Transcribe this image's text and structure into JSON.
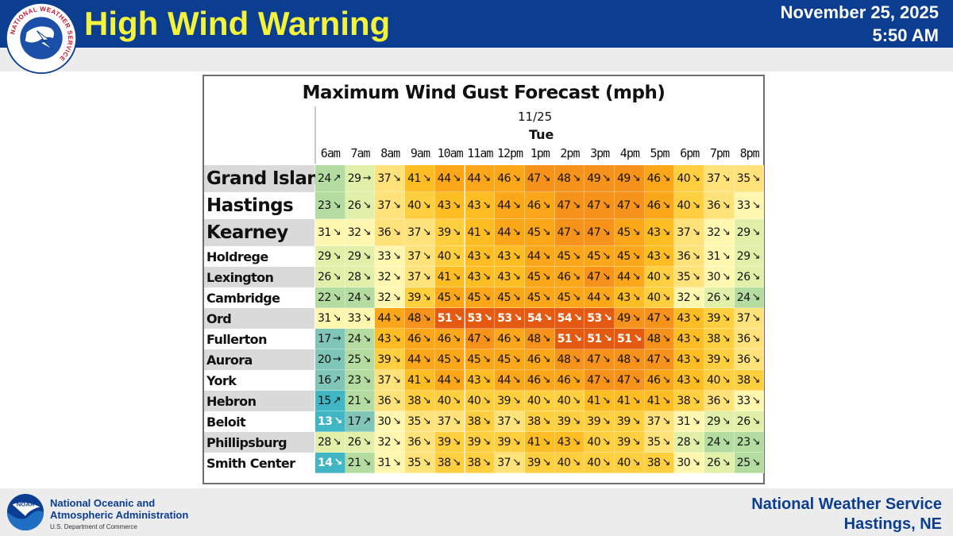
{
  "header": {
    "headline": "High Wind Warning",
    "date": "November 25, 2025",
    "time": "5:50 AM",
    "logo_icon": "nws-logo-icon",
    "logo_text": "NATIONAL WEATHER SERVICE"
  },
  "table": {
    "title": "Maximum Wind Gust Forecast (mph)",
    "date_label": "11/25",
    "day_label": "Tue",
    "hours": [
      "6am",
      "7am",
      "8am",
      "9am",
      "10am",
      "11am",
      "12pm",
      "1pm",
      "2pm",
      "3pm",
      "4pm",
      "5pm",
      "6pm",
      "7pm",
      "8pm"
    ],
    "rows": [
      {
        "city": "Grand Island",
        "size": "big",
        "gusts": [
          24,
          29,
          37,
          41,
          44,
          44,
          46,
          47,
          48,
          49,
          49,
          46,
          40,
          37,
          35
        ],
        "arrows": [
          "↗",
          "→",
          "↘",
          "↘",
          "↘",
          "↘",
          "↘",
          "↘",
          "↘",
          "↘",
          "↘",
          "↘",
          "↘",
          "↘",
          "↘"
        ]
      },
      {
        "city": "Hastings",
        "size": "big",
        "gusts": [
          23,
          26,
          37,
          40,
          43,
          43,
          44,
          46,
          47,
          47,
          47,
          46,
          40,
          36,
          33
        ],
        "arrows": [
          "↘",
          "↘",
          "↘",
          "↘",
          "↘",
          "↘",
          "↘",
          "↘",
          "↘",
          "↘",
          "↘",
          "↘",
          "↘",
          "↘",
          "↘"
        ]
      },
      {
        "city": "Kearney",
        "size": "big",
        "gusts": [
          31,
          32,
          36,
          37,
          39,
          41,
          44,
          45,
          47,
          47,
          45,
          43,
          37,
          32,
          29
        ],
        "arrows": [
          "↘",
          "↘",
          "↘",
          "↘",
          "↘",
          "↘",
          "↘",
          "↘",
          "↘",
          "↘",
          "↘",
          "↘",
          "↘",
          "↘",
          "↘"
        ]
      },
      {
        "city": "Holdrege",
        "size": "small",
        "gusts": [
          29,
          29,
          33,
          37,
          40,
          43,
          43,
          44,
          45,
          45,
          45,
          43,
          36,
          31,
          29
        ],
        "arrows": [
          "↘",
          "↘",
          "↘",
          "↘",
          "↘",
          "↘",
          "↘",
          "↘",
          "↘",
          "↘",
          "↘",
          "↘",
          "↘",
          "↘",
          "↘"
        ]
      },
      {
        "city": "Lexington",
        "size": "small",
        "gusts": [
          26,
          28,
          32,
          37,
          41,
          43,
          43,
          45,
          46,
          47,
          44,
          40,
          35,
          30,
          26
        ],
        "arrows": [
          "↘",
          "↘",
          "↘",
          "↘",
          "↘",
          "↘",
          "↘",
          "↘",
          "↘",
          "↘",
          "↘",
          "↘",
          "↘",
          "↘",
          "↘"
        ]
      },
      {
        "city": "Cambridge",
        "size": "small",
        "gusts": [
          22,
          24,
          32,
          39,
          45,
          45,
          45,
          45,
          45,
          44,
          43,
          40,
          32,
          26,
          24
        ],
        "arrows": [
          "↘",
          "↘",
          "↘",
          "↘",
          "↘",
          "↘",
          "↘",
          "↘",
          "↘",
          "↘",
          "↘",
          "↘",
          "↘",
          "↘",
          "↘"
        ]
      },
      {
        "city": "Ord",
        "size": "small",
        "gusts": [
          31,
          33,
          44,
          48,
          51,
          53,
          53,
          54,
          54,
          53,
          49,
          47,
          43,
          39,
          37
        ],
        "arrows": [
          "↘",
          "↘",
          "↘",
          "↘",
          "↘",
          "↘",
          "↘",
          "↘",
          "↘",
          "↘",
          "↘",
          "↘",
          "↘",
          "↘",
          "↘"
        ]
      },
      {
        "city": "Fullerton",
        "size": "small",
        "gusts": [
          17,
          24,
          43,
          46,
          46,
          47,
          46,
          48,
          51,
          51,
          51,
          48,
          43,
          38,
          36
        ],
        "arrows": [
          "→",
          "↘",
          "↘",
          "↘",
          "↘",
          "↘",
          "↘",
          "↘",
          "↘",
          "↘",
          "↘",
          "↘",
          "↘",
          "↘",
          "↘"
        ]
      },
      {
        "city": "Aurora",
        "size": "small",
        "gusts": [
          20,
          25,
          39,
          44,
          45,
          45,
          45,
          46,
          48,
          47,
          48,
          47,
          43,
          39,
          36
        ],
        "arrows": [
          "→",
          "↘",
          "↘",
          "↘",
          "↘",
          "↘",
          "↘",
          "↘",
          "↘",
          "↘",
          "↘",
          "↘",
          "↘",
          "↘",
          "↘"
        ]
      },
      {
        "city": "York",
        "size": "small",
        "gusts": [
          16,
          23,
          37,
          41,
          44,
          43,
          44,
          46,
          46,
          47,
          47,
          46,
          43,
          40,
          38
        ],
        "arrows": [
          "↗",
          "↘",
          "↘",
          "↘",
          "↘",
          "↘",
          "↘",
          "↘",
          "↘",
          "↘",
          "↘",
          "↘",
          "↘",
          "↘",
          "↘"
        ]
      },
      {
        "city": "Hebron",
        "size": "small",
        "gusts": [
          15,
          21,
          36,
          38,
          40,
          40,
          39,
          40,
          40,
          41,
          41,
          41,
          38,
          36,
          33
        ],
        "arrows": [
          "↗",
          "↘",
          "↘",
          "↘",
          "↘",
          "↘",
          "↘",
          "↘",
          "↘",
          "↘",
          "↘",
          "↘",
          "↘",
          "↘",
          "↘"
        ]
      },
      {
        "city": "Beloit",
        "size": "small",
        "gusts": [
          13,
          17,
          30,
          35,
          37,
          38,
          37,
          38,
          39,
          39,
          39,
          37,
          31,
          29,
          26
        ],
        "arrows": [
          "↘",
          "↗",
          "↘",
          "↘",
          "↘",
          "↘",
          "↘",
          "↘",
          "↘",
          "↘",
          "↘",
          "↘",
          "↘",
          "↘",
          "↘"
        ]
      },
      {
        "city": "Phillipsburg",
        "size": "small",
        "gusts": [
          28,
          26,
          32,
          36,
          39,
          39,
          39,
          41,
          43,
          40,
          39,
          35,
          28,
          24,
          23
        ],
        "arrows": [
          "↘",
          "↘",
          "↘",
          "↘",
          "↘",
          "↘",
          "↘",
          "↘",
          "↘",
          "↘",
          "↘",
          "↘",
          "↘",
          "↘",
          "↘"
        ]
      },
      {
        "city": "Smith Center",
        "size": "small",
        "gusts": [
          14,
          21,
          31,
          35,
          38,
          38,
          37,
          39,
          40,
          40,
          40,
          38,
          30,
          26,
          25
        ],
        "arrows": [
          "↘",
          "↘",
          "↘",
          "↘",
          "↘",
          "↘",
          "↘",
          "↘",
          "↘",
          "↘",
          "↘",
          "↘",
          "↘",
          "↘",
          "↘"
        ]
      }
    ]
  },
  "colors": {
    "header_blue": "#0b3d91",
    "headline_yellow": "#f3f33b",
    "scale": {
      "le15": "#41b6c4",
      "le20": "#7fc6b8",
      "le25": "#b4dca0",
      "le29": "#e0f0a8",
      "le33": "#fff7b0",
      "le37": "#ffe27a",
      "le40": "#ffcf3f",
      "le43": "#ffbd24",
      "le46": "#fca61a",
      "le50": "#f7921a",
      "ge51": "#e35a10"
    }
  },
  "footer": {
    "agency_line1": "National Oceanic and",
    "agency_line2": "Atmospheric Administration",
    "dept": "U.S. Department of Commerce",
    "office": "National Weather Service",
    "location": "Hastings, NE",
    "logo_icon": "noaa-logo-icon",
    "logo_text": "NOAA"
  }
}
